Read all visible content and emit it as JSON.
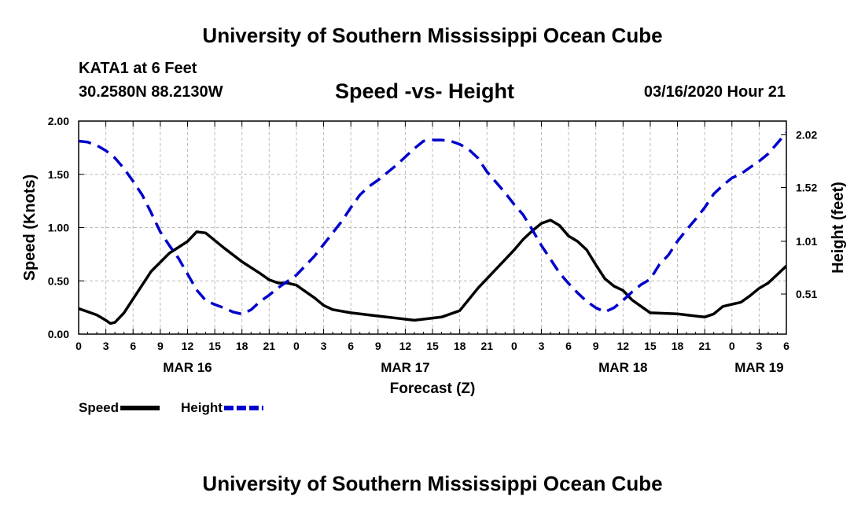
{
  "header": {
    "title": "University of Southern Mississippi Ocean Cube",
    "station": "KATA1 at 6 Feet",
    "coords": "30.2580N 88.2130W",
    "subtitle": "Speed -vs- Height",
    "datetime": "03/16/2020 Hour 21"
  },
  "footer": {
    "title": "University of Southern Mississippi Ocean Cube"
  },
  "chart_data": {
    "type": "line",
    "title": "Speed -vs- Height",
    "xlabel": "Forecast (Z)",
    "ylabel": "Speed (Knots)",
    "y2label": "Height (feet)",
    "x_unit": "hours since 03/16 00Z",
    "xlim": [
      0,
      78
    ],
    "ylim": [
      0,
      2.0
    ],
    "y2lim": [
      0.13,
      2.15
    ],
    "grid": true,
    "x_ticks": [
      {
        "x": 0,
        "label": "0"
      },
      {
        "x": 3,
        "label": "3"
      },
      {
        "x": 6,
        "label": "6"
      },
      {
        "x": 9,
        "label": "9"
      },
      {
        "x": 12,
        "label": "12"
      },
      {
        "x": 15,
        "label": "15"
      },
      {
        "x": 18,
        "label": "18"
      },
      {
        "x": 21,
        "label": "21"
      },
      {
        "x": 24,
        "label": "0"
      },
      {
        "x": 27,
        "label": "3"
      },
      {
        "x": 30,
        "label": "6"
      },
      {
        "x": 33,
        "label": "9"
      },
      {
        "x": 36,
        "label": "12"
      },
      {
        "x": 39,
        "label": "15"
      },
      {
        "x": 42,
        "label": "18"
      },
      {
        "x": 45,
        "label": "21"
      },
      {
        "x": 48,
        "label": "0"
      },
      {
        "x": 51,
        "label": "3"
      },
      {
        "x": 54,
        "label": "6"
      },
      {
        "x": 57,
        "label": "9"
      },
      {
        "x": 60,
        "label": "12"
      },
      {
        "x": 63,
        "label": "15"
      },
      {
        "x": 66,
        "label": "18"
      },
      {
        "x": 69,
        "label": "21"
      },
      {
        "x": 72,
        "label": "0"
      },
      {
        "x": 75,
        "label": "3"
      },
      {
        "x": 78,
        "label": "6"
      }
    ],
    "date_labels": [
      {
        "x": 12,
        "label": "MAR 16"
      },
      {
        "x": 36,
        "label": "MAR 17"
      },
      {
        "x": 60,
        "label": "MAR 18"
      },
      {
        "x": 75,
        "label": "MAR 19"
      }
    ],
    "y_ticks": [
      {
        "y": 0.0,
        "label": "0.00"
      },
      {
        "y": 0.5,
        "label": "0.50"
      },
      {
        "y": 1.0,
        "label": "1.00"
      },
      {
        "y": 1.5,
        "label": "1.50"
      },
      {
        "y": 2.0,
        "label": "2.00"
      }
    ],
    "y2_ticks": [
      {
        "y": 0.51,
        "label": "0.51"
      },
      {
        "y": 1.01,
        "label": "1.01"
      },
      {
        "y": 1.52,
        "label": "1.52"
      },
      {
        "y": 2.02,
        "label": "2.02"
      }
    ],
    "series": [
      {
        "name": "Speed",
        "axis": "left",
        "color": "#000000",
        "dash": "solid",
        "x": [
          0,
          1,
          2,
          3,
          3.5,
          4,
          5,
          6,
          8,
          10,
          12,
          13,
          14,
          16,
          18,
          20,
          21,
          22,
          23,
          24,
          26,
          27,
          28,
          30,
          33,
          36,
          37,
          38,
          40,
          42,
          44,
          46,
          48,
          49,
          50,
          51,
          52,
          53,
          54,
          55,
          56,
          57,
          58,
          59,
          60,
          61,
          63,
          66,
          69,
          70,
          71,
          72,
          73,
          74,
          75,
          76,
          77,
          78
        ],
        "y": [
          0.24,
          0.21,
          0.18,
          0.13,
          0.1,
          0.11,
          0.2,
          0.33,
          0.59,
          0.76,
          0.87,
          0.96,
          0.95,
          0.81,
          0.68,
          0.57,
          0.51,
          0.48,
          0.48,
          0.46,
          0.34,
          0.27,
          0.23,
          0.2,
          0.17,
          0.14,
          0.13,
          0.14,
          0.16,
          0.22,
          0.43,
          0.61,
          0.79,
          0.89,
          0.97,
          1.04,
          1.07,
          1.02,
          0.92,
          0.87,
          0.79,
          0.65,
          0.52,
          0.45,
          0.41,
          0.32,
          0.2,
          0.19,
          0.16,
          0.19,
          0.26,
          0.28,
          0.3,
          0.36,
          0.43,
          0.48,
          0.56,
          0.64
        ]
      },
      {
        "name": "Height",
        "axis": "right",
        "color": "#0000cc",
        "dash": "dashed",
        "x": [
          0,
          1,
          2,
          3,
          4,
          5,
          6,
          7,
          8,
          9,
          10,
          11,
          12,
          13,
          14,
          15,
          16,
          17,
          18,
          19,
          20,
          21,
          22,
          23,
          24,
          25,
          26,
          27,
          28,
          29,
          30,
          31,
          32,
          33,
          34,
          35,
          36,
          37,
          38,
          39,
          40,
          41,
          42,
          43,
          44,
          45,
          46,
          47,
          48,
          49,
          50,
          51,
          52,
          53,
          54,
          55,
          56,
          57,
          58,
          59,
          60,
          61,
          62,
          63,
          64,
          65,
          66,
          67,
          68,
          69,
          70,
          71,
          72,
          73,
          74,
          75,
          76,
          77,
          78
        ],
        "y": [
          1.96,
          1.95,
          1.92,
          1.87,
          1.8,
          1.7,
          1.58,
          1.45,
          1.28,
          1.1,
          0.97,
          0.85,
          0.7,
          0.55,
          0.45,
          0.41,
          0.38,
          0.34,
          0.32,
          0.36,
          0.44,
          0.5,
          0.57,
          0.63,
          0.69,
          0.78,
          0.87,
          0.98,
          1.09,
          1.2,
          1.33,
          1.45,
          1.53,
          1.59,
          1.66,
          1.73,
          1.81,
          1.89,
          1.96,
          1.97,
          1.97,
          1.96,
          1.93,
          1.88,
          1.8,
          1.67,
          1.57,
          1.47,
          1.36,
          1.26,
          1.12,
          0.97,
          0.84,
          0.71,
          0.61,
          0.52,
          0.44,
          0.38,
          0.34,
          0.38,
          0.45,
          0.53,
          0.6,
          0.65,
          0.79,
          0.88,
          1.01,
          1.12,
          1.22,
          1.33,
          1.46,
          1.54,
          1.61,
          1.65,
          1.71,
          1.77,
          1.84,
          1.94,
          2.04
        ]
      }
    ],
    "legend": {
      "placement": "bottom-left",
      "items": [
        {
          "label": "Speed",
          "color": "#000000",
          "dash": "solid"
        },
        {
          "label": "Height",
          "color": "#0000cc",
          "dash": "dashed"
        }
      ]
    }
  }
}
